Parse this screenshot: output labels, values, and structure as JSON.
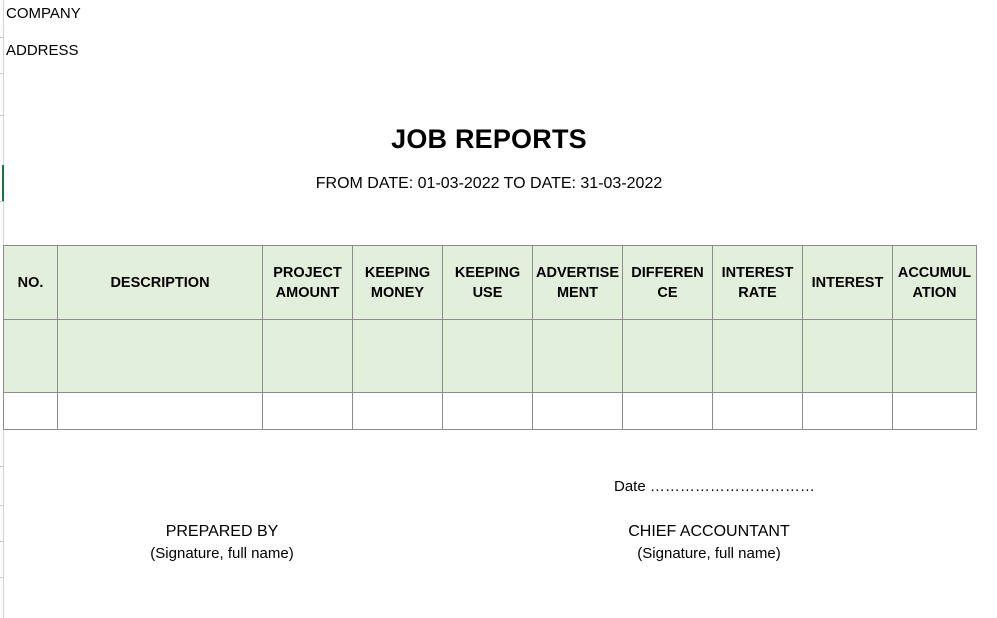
{
  "header": {
    "company": "COMPANY",
    "address": "ADDRESS"
  },
  "report": {
    "title": "JOB REPORTS",
    "period": "FROM DATE: 01-03-2022 TO DATE: 31-03-2022"
  },
  "table": {
    "columns": [
      {
        "line1": "NO.",
        "line2": ""
      },
      {
        "line1": "DESCRIPTION",
        "line2": ""
      },
      {
        "line1": "PROJECT",
        "line2": "AMOUNT"
      },
      {
        "line1": "KEEPING",
        "line2": "MONEY"
      },
      {
        "line1": "KEEPING",
        "line2": "USE"
      },
      {
        "line1": "ADVERTISE",
        "line2": "MENT"
      },
      {
        "line1": "DIFFEREN",
        "line2": "CE"
      },
      {
        "line1": "INTEREST",
        "line2": "RATE"
      },
      {
        "line1": "INTEREST",
        "line2": ""
      },
      {
        "line1": "ACCUMUL",
        "line2": "ATION"
      }
    ]
  },
  "footer": {
    "date_label": "Date ……………………………",
    "prepared_by": "PREPARED BY",
    "prepared_by_note": "(Signature, full name)",
    "chief_accountant": "CHIEF ACCOUNTANT",
    "chief_accountant_note": "(Signature, full name)"
  }
}
